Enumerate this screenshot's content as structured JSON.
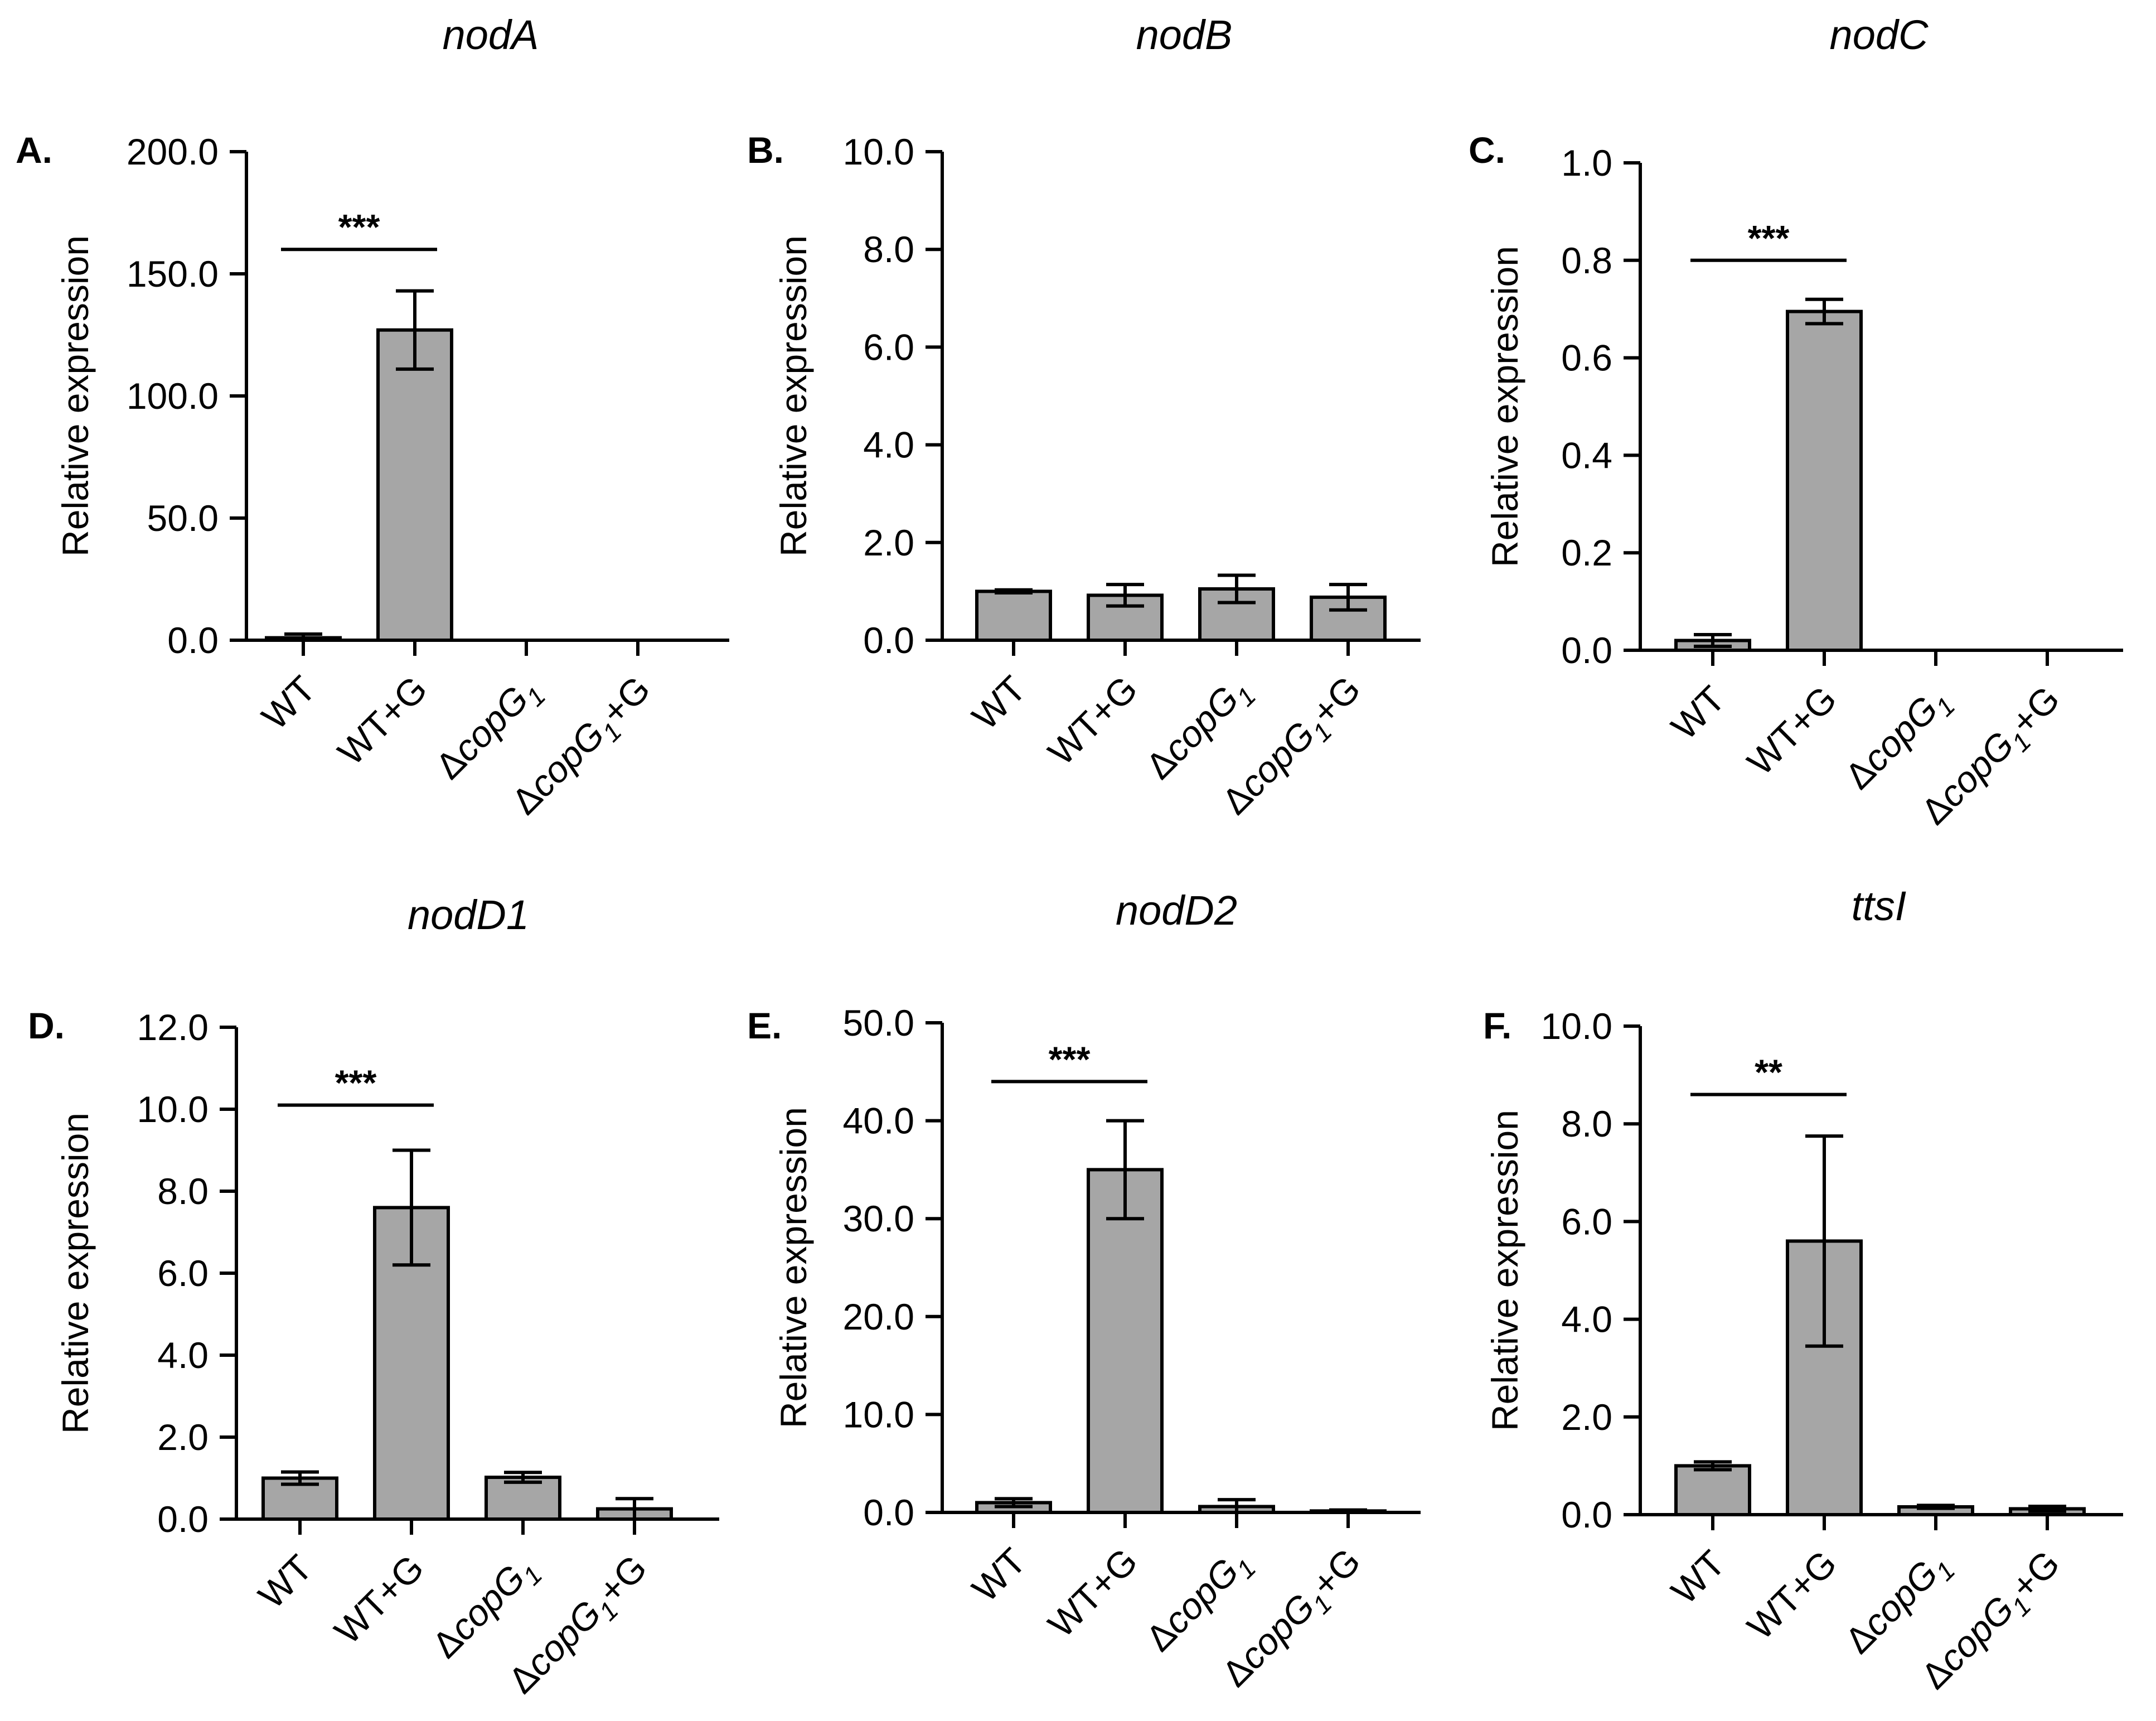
{
  "chart_data": [
    {
      "type": "bar",
      "panel": "A.",
      "title": "nodA",
      "ylabel": "Relative expression",
      "ylim": [
        0,
        200
      ],
      "yticks": [
        "0.0",
        "50.0",
        "100.0",
        "150.0",
        "200.0"
      ],
      "categories": [
        "WT",
        "WT+G",
        "ΔcopG1",
        "ΔcopG1+G"
      ],
      "values": [
        1,
        127,
        0,
        0
      ],
      "errors": [
        1.5,
        16,
        0,
        0
      ],
      "significance": [
        {
          "from": 0,
          "to": 1,
          "label": "***",
          "y": 160
        }
      ]
    },
    {
      "type": "bar",
      "panel": "B.",
      "title": "nodB",
      "ylabel": "Relative expression",
      "ylim": [
        0,
        10
      ],
      "yticks": [
        "0.0",
        "2.0",
        "4.0",
        "6.0",
        "8.0",
        "10.0"
      ],
      "categories": [
        "WT",
        "WT+G",
        "ΔcopG1",
        "ΔcopG1+G"
      ],
      "values": [
        1.0,
        0.92,
        1.05,
        0.88
      ],
      "errors": [
        0.03,
        0.22,
        0.28,
        0.26
      ],
      "significance": []
    },
    {
      "type": "bar",
      "panel": "C.",
      "title": "nodC",
      "ylabel": "Relative expression",
      "ylim": [
        0,
        1
      ],
      "yticks": [
        "0.0",
        "0.2",
        "0.4",
        "0.6",
        "0.8",
        "1.0"
      ],
      "categories": [
        "WT",
        "WT+G",
        "ΔcopG1",
        "ΔcopG1+G"
      ],
      "values": [
        0.02,
        0.695,
        0,
        0
      ],
      "errors": [
        0.012,
        0.025,
        0,
        0
      ],
      "significance": [
        {
          "from": 0,
          "to": 1,
          "label": "***",
          "y": 0.8
        }
      ]
    },
    {
      "type": "bar",
      "panel": "D.",
      "title": "nodD1",
      "ylabel": "Relative expression",
      "ylim": [
        0,
        12
      ],
      "yticks": [
        "0.0",
        "2.0",
        "4.0",
        "6.0",
        "8.0",
        "10.0",
        "12.0"
      ],
      "categories": [
        "WT",
        "WT+G",
        "ΔcopG1",
        "ΔcopG1+G"
      ],
      "values": [
        1.0,
        7.6,
        1.02,
        0.25
      ],
      "errors": [
        0.15,
        1.4,
        0.12,
        0.25
      ],
      "significance": [
        {
          "from": 0,
          "to": 1,
          "label": "***",
          "y": 10.1
        }
      ]
    },
    {
      "type": "bar",
      "panel": "E.",
      "title": "nodD2",
      "ylabel": "Relative expression",
      "ylim": [
        0,
        50
      ],
      "yticks": [
        "0.0",
        "10.0",
        "20.0",
        "30.0",
        "40.0",
        "50.0"
      ],
      "categories": [
        "WT",
        "WT+G",
        "ΔcopG1",
        "ΔcopG1+G"
      ],
      "values": [
        1.0,
        35.0,
        0.6,
        0.15
      ],
      "errors": [
        0.4,
        5.0,
        0.7,
        0.1
      ],
      "significance": [
        {
          "from": 0,
          "to": 1,
          "label": "***",
          "y": 44
        }
      ]
    },
    {
      "type": "bar",
      "panel": "F.",
      "title": "ttsI",
      "ylabel": "Relative expression",
      "ylim": [
        0,
        10
      ],
      "yticks": [
        "0.0",
        "2.0",
        "4.0",
        "6.0",
        "8.0",
        "10.0"
      ],
      "categories": [
        "WT",
        "WT+G",
        "ΔcopG1",
        "ΔcopG1+G"
      ],
      "values": [
        1.0,
        5.6,
        0.16,
        0.12
      ],
      "errors": [
        0.08,
        2.15,
        0.03,
        0.05
      ],
      "significance": [
        {
          "from": 0,
          "to": 1,
          "label": "**",
          "y": 8.6
        }
      ]
    }
  ]
}
